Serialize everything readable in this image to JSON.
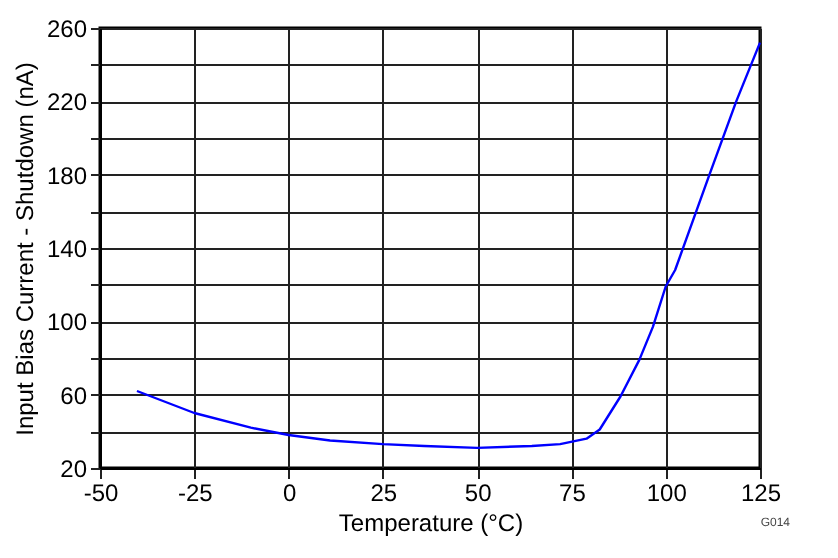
{
  "chart_data": {
    "type": "line",
    "xlabel": "Temperature (°C)",
    "ylabel": "Input Bias Current - Shutdown (nA)",
    "x": [
      -40.2,
      -25,
      -10,
      0,
      11,
      25,
      36,
      50,
      64.5,
      72,
      79,
      82.5,
      88,
      93,
      96.6,
      100,
      102.5,
      111.6,
      118.7,
      125
    ],
    "series": [
      {
        "color": "#0000ff",
        "values": [
          62,
          50,
          42,
          38,
          35,
          33,
          32,
          31,
          32,
          33,
          36,
          41,
          59,
          79,
          97,
          119,
          128,
          180,
          220,
          252
        ]
      }
    ],
    "xlim": [
      -50,
      125
    ],
    "xticks": [
      -50,
      -25,
      0,
      25,
      50,
      75,
      100,
      125
    ],
    "ylim": [
      20,
      260
    ],
    "yticks": [
      20,
      {
        "value": 40,
        "label": null
      },
      60,
      {
        "value": 80,
        "label": null
      },
      100,
      {
        "value": 120,
        "label": null
      },
      140,
      {
        "value": 160,
        "label": null
      },
      180,
      {
        "value": 200,
        "label": null
      },
      220,
      {
        "value": 240,
        "label": null
      },
      260
    ],
    "grid": true,
    "line_style": "solid",
    "marker": "none",
    "legend": false,
    "annotations": [
      "G014"
    ]
  }
}
